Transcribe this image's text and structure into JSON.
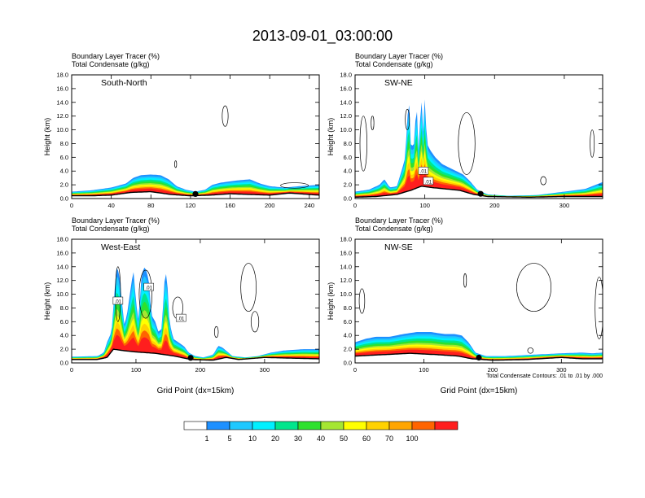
{
  "figure_title": "2013-09-01_03:00:00",
  "chart_data": [
    {
      "type": "area",
      "panel": "South-North",
      "title_line1": "Boundary Layer Tracer   (%)",
      "title_line2": "Total Condensate   (g/kg)",
      "ylabel": "Height (km)",
      "xlabel": "",
      "xlim": [
        0,
        250
      ],
      "ylim": [
        0,
        18
      ],
      "xticks": [
        "0",
        "40",
        "80",
        "120",
        "160",
        "200",
        "240"
      ],
      "yticks": [
        "0.0",
        "2.0",
        "4.0",
        "6.0",
        "8.0",
        "10.0",
        "12.0",
        "14.0",
        "16.0",
        "18.0"
      ],
      "terrain": [
        [
          0,
          0.4
        ],
        [
          20,
          0.4
        ],
        [
          40,
          0.5
        ],
        [
          60,
          0.9
        ],
        [
          80,
          1.0
        ],
        [
          100,
          0.6
        ],
        [
          120,
          0.4
        ],
        [
          140,
          0.5
        ],
        [
          160,
          0.7
        ],
        [
          180,
          0.6
        ],
        [
          200,
          0.5
        ],
        [
          220,
          0.8
        ],
        [
          240,
          0.6
        ],
        [
          250,
          0.5
        ]
      ],
      "tracer_top": [
        [
          0,
          1.0
        ],
        [
          20,
          1.2
        ],
        [
          40,
          1.6
        ],
        [
          55,
          2.2
        ],
        [
          62,
          3.0
        ],
        [
          70,
          3.4
        ],
        [
          80,
          3.5
        ],
        [
          90,
          3.4
        ],
        [
          98,
          2.8
        ],
        [
          106,
          1.8
        ],
        [
          115,
          1.3
        ],
        [
          125,
          1.0
        ],
        [
          135,
          1.3
        ],
        [
          142,
          2.0
        ],
        [
          150,
          2.3
        ],
        [
          165,
          2.6
        ],
        [
          180,
          2.8
        ],
        [
          190,
          2.2
        ],
        [
          200,
          1.8
        ],
        [
          215,
          1.6
        ],
        [
          230,
          1.8
        ],
        [
          250,
          2.0
        ]
      ],
      "station_x": 125,
      "condensate_contours": [
        {
          "cx": 155,
          "cy": 12.0,
          "rx": 3,
          "ry": 1.5
        },
        {
          "cx": 105,
          "cy": 5.0,
          "rx": 1,
          "ry": 0.5
        },
        {
          "cx": 225,
          "cy": 1.9,
          "rx": 14,
          "ry": 0.4
        }
      ],
      "contour_labels": []
    },
    {
      "type": "area",
      "panel": "SW-NE",
      "title_line1": "Boundary Layer Tracer   (%)",
      "title_line2": "Total Condensate   (g/kg)",
      "ylabel": "Height (km)",
      "xlabel": "",
      "xlim": [
        0,
        355
      ],
      "ylim": [
        0,
        18
      ],
      "xticks": [
        "0",
        "100",
        "200",
        "300"
      ],
      "yticks": [
        "0.0",
        "2.0",
        "4.0",
        "6.0",
        "8.0",
        "10.0",
        "12.0",
        "14.0",
        "16.0",
        "18.0"
      ],
      "terrain": [
        [
          0,
          0.2
        ],
        [
          30,
          0.3
        ],
        [
          60,
          0.6
        ],
        [
          80,
          1.2
        ],
        [
          95,
          1.8
        ],
        [
          110,
          1.6
        ],
        [
          130,
          1.4
        ],
        [
          150,
          1.2
        ],
        [
          170,
          0.6
        ],
        [
          190,
          0.3
        ],
        [
          250,
          0.2
        ],
        [
          300,
          0.3
        ],
        [
          355,
          0.3
        ]
      ],
      "tracer_top": [
        [
          0,
          1.0
        ],
        [
          20,
          1.3
        ],
        [
          35,
          2.0
        ],
        [
          42,
          2.8
        ],
        [
          50,
          1.6
        ],
        [
          60,
          1.8
        ],
        [
          68,
          4.5
        ],
        [
          72,
          6.0
        ],
        [
          75,
          12.0
        ],
        [
          78,
          13.8
        ],
        [
          80,
          7.5
        ],
        [
          85,
          8.0
        ],
        [
          88,
          14.5
        ],
        [
          91,
          7.0
        ],
        [
          95,
          14.8
        ],
        [
          98,
          9.0
        ],
        [
          100,
          14.9
        ],
        [
          103,
          8.0
        ],
        [
          108,
          7.0
        ],
        [
          115,
          6.0
        ],
        [
          125,
          5.0
        ],
        [
          135,
          4.5
        ],
        [
          145,
          4.0
        ],
        [
          155,
          3.5
        ],
        [
          165,
          2.5
        ],
        [
          175,
          1.3
        ],
        [
          190,
          0.6
        ],
        [
          220,
          0.4
        ],
        [
          260,
          0.5
        ],
        [
          300,
          1.0
        ],
        [
          330,
          1.4
        ],
        [
          345,
          2.0
        ],
        [
          355,
          2.4
        ]
      ],
      "station_x": 180,
      "condensate_contours": [
        {
          "cx": 12,
          "cy": 8.0,
          "rx": 5,
          "ry": 4.0
        },
        {
          "cx": 75,
          "cy": 11.5,
          "rx": 3,
          "ry": 1.5
        },
        {
          "cx": 160,
          "cy": 8.0,
          "rx": 12,
          "ry": 4.5
        },
        {
          "cx": 270,
          "cy": 2.6,
          "rx": 4,
          "ry": 0.6
        },
        {
          "cx": 340,
          "cy": 8.0,
          "rx": 3,
          "ry": 2.0
        },
        {
          "cx": 25,
          "cy": 11.0,
          "rx": 2,
          "ry": 1.0
        }
      ],
      "contour_labels": [
        {
          "text": ".01",
          "x": 98,
          "y": 4.0
        },
        {
          "text": ".01",
          "x": 105,
          "y": 2.5
        }
      ]
    },
    {
      "type": "area",
      "panel": "West-East",
      "title_line1": "Boundary Layer Tracer   (%)",
      "title_line2": "Total Condensate   (g/kg)",
      "ylabel": "Height (km)",
      "xlabel": "Grid Point (dx=15km)",
      "xlim": [
        0,
        385
      ],
      "ylim": [
        0,
        18
      ],
      "xticks": [
        "0",
        "100",
        "200",
        "300"
      ],
      "yticks": [
        "0.0",
        "2.0",
        "4.0",
        "6.0",
        "8.0",
        "10.0",
        "12.0",
        "14.0",
        "16.0",
        "18.0"
      ],
      "terrain": [
        [
          0,
          0.5
        ],
        [
          40,
          0.5
        ],
        [
          55,
          0.8
        ],
        [
          65,
          2.0
        ],
        [
          80,
          1.8
        ],
        [
          100,
          1.6
        ],
        [
          130,
          1.4
        ],
        [
          160,
          1.0
        ],
        [
          185,
          0.5
        ],
        [
          220,
          0.4
        ],
        [
          240,
          0.8
        ],
        [
          260,
          0.5
        ],
        [
          300,
          0.8
        ],
        [
          340,
          0.7
        ],
        [
          385,
          0.6
        ]
      ],
      "tracer_top": [
        [
          0,
          0.9
        ],
        [
          40,
          1.0
        ],
        [
          50,
          1.5
        ],
        [
          55,
          3.0
        ],
        [
          62,
          4.5
        ],
        [
          68,
          12.0
        ],
        [
          70,
          14.0
        ],
        [
          74,
          13.0
        ],
        [
          78,
          9.0
        ],
        [
          82,
          5.5
        ],
        [
          86,
          7.0
        ],
        [
          92,
          11.0
        ],
        [
          96,
          13.5
        ],
        [
          100,
          9.0
        ],
        [
          104,
          6.0
        ],
        [
          108,
          12.0
        ],
        [
          112,
          14.0
        ],
        [
          116,
          13.5
        ],
        [
          120,
          12.0
        ],
        [
          124,
          7.0
        ],
        [
          130,
          6.0
        ],
        [
          135,
          4.5
        ],
        [
          140,
          5.0
        ],
        [
          145,
          12.8
        ],
        [
          148,
          13.0
        ],
        [
          152,
          6.0
        ],
        [
          158,
          3.5
        ],
        [
          166,
          3.0
        ],
        [
          175,
          2.4
        ],
        [
          182,
          1.5
        ],
        [
          192,
          1.0
        ],
        [
          205,
          0.8
        ],
        [
          220,
          1.2
        ],
        [
          228,
          2.5
        ],
        [
          235,
          2.2
        ],
        [
          250,
          1.0
        ],
        [
          270,
          0.8
        ],
        [
          290,
          1.0
        ],
        [
          310,
          1.5
        ],
        [
          330,
          1.8
        ],
        [
          360,
          2.0
        ],
        [
          385,
          2.0
        ]
      ],
      "station_x": 185,
      "condensate_contours": [
        {
          "cx": 72,
          "cy": 10.0,
          "rx": 4,
          "ry": 4.0
        },
        {
          "cx": 115,
          "cy": 10.0,
          "rx": 10,
          "ry": 3.5
        },
        {
          "cx": 165,
          "cy": 8.0,
          "rx": 8,
          "ry": 1.6
        },
        {
          "cx": 275,
          "cy": 11.0,
          "rx": 12,
          "ry": 3.5
        },
        {
          "cx": 285,
          "cy": 6.0,
          "rx": 6,
          "ry": 1.5
        },
        {
          "cx": 225,
          "cy": 4.5,
          "rx": 3,
          "ry": 0.8
        }
      ],
      "contour_labels": [
        {
          "text": ".01",
          "x": 72,
          "y": 9.0
        },
        {
          "text": ".01",
          "x": 120,
          "y": 11.0
        },
        {
          "text": ".01",
          "x": 170,
          "y": 6.5
        }
      ]
    },
    {
      "type": "area",
      "panel": "NW-SE",
      "title_line1": "Boundary Layer Tracer   (%)",
      "title_line2": "Total Condensate   (g/kg)",
      "ylabel": "Height (km)",
      "xlabel": "Grid Point (dx=15km)",
      "xlim": [
        0,
        360
      ],
      "ylim": [
        0,
        18
      ],
      "xticks": [
        "0",
        "100",
        "200",
        "300"
      ],
      "yticks": [
        "0.0",
        "2.0",
        "4.0",
        "6.0",
        "8.0",
        "10.0",
        "12.0",
        "14.0",
        "16.0",
        "18.0"
      ],
      "terrain": [
        [
          0,
          1.0
        ],
        [
          40,
          1.2
        ],
        [
          80,
          1.4
        ],
        [
          120,
          1.2
        ],
        [
          150,
          1.0
        ],
        [
          170,
          0.6
        ],
        [
          200,
          0.4
        ],
        [
          250,
          0.5
        ],
        [
          300,
          0.8
        ],
        [
          330,
          0.6
        ],
        [
          360,
          0.6
        ]
      ],
      "tracer_top": [
        [
          0,
          3.0
        ],
        [
          15,
          3.5
        ],
        [
          30,
          3.8
        ],
        [
          50,
          3.8
        ],
        [
          70,
          4.2
        ],
        [
          90,
          4.5
        ],
        [
          110,
          4.5
        ],
        [
          130,
          4.2
        ],
        [
          145,
          4.2
        ],
        [
          155,
          4.0
        ],
        [
          165,
          3.0
        ],
        [
          175,
          1.5
        ],
        [
          190,
          1.0
        ],
        [
          220,
          1.0
        ],
        [
          260,
          1.2
        ],
        [
          300,
          1.4
        ],
        [
          330,
          1.5
        ],
        [
          345,
          1.4
        ],
        [
          360,
          1.5
        ]
      ],
      "station_x": 180,
      "condensate_contours": [
        {
          "cx": 10,
          "cy": 9.0,
          "rx": 4,
          "ry": 1.8
        },
        {
          "cx": 260,
          "cy": 11.0,
          "rx": 25,
          "ry": 3.5
        },
        {
          "cx": 355,
          "cy": 8.0,
          "rx": 6,
          "ry": 4.5
        },
        {
          "cx": 160,
          "cy": 12.0,
          "rx": 2,
          "ry": 1.0
        },
        {
          "cx": 255,
          "cy": 1.8,
          "rx": 4,
          "ry": 0.4
        }
      ],
      "contour_labels": []
    }
  ],
  "contour_note": "Total Condensate Contours: .01 to .01 by .000",
  "colorbar": {
    "colors": [
      "#ffffff",
      "#1e90ff",
      "#1ec8ff",
      "#00f0ff",
      "#00e68c",
      "#2de12d",
      "#a5e632",
      "#ffff00",
      "#ffd200",
      "#ffa500",
      "#ff6400",
      "#ff1e1e"
    ],
    "labels": [
      "1",
      "5",
      "10",
      "20",
      "30",
      "40",
      "50",
      "60",
      "70",
      "100"
    ]
  }
}
